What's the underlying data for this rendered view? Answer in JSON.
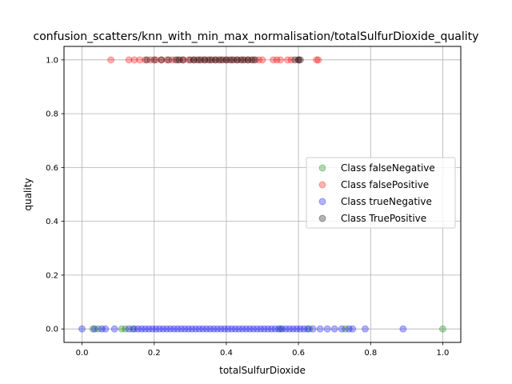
{
  "chart_data": {
    "type": "scatter",
    "title": "confusion_scatters/knn_with_min_max_normalisation/totalSulfurDioxide_quality",
    "xlabel": "totalSulfurDioxide",
    "ylabel": "quality",
    "xlim": [
      -0.05,
      1.05
    ],
    "ylim": [
      -0.05,
      1.05
    ],
    "grid": true,
    "xticks": [
      "0.0",
      "0.2",
      "0.4",
      "0.6",
      "0.8",
      "1.0"
    ],
    "yticks": [
      "0.0",
      "0.2",
      "0.4",
      "0.6",
      "0.8",
      "1.0"
    ],
    "legend_position": "center-right",
    "series": [
      {
        "name": "Class falseNegative",
        "color": "#008000",
        "x": [
          0.03,
          0.045,
          0.11,
          0.12,
          0.14,
          0.55,
          0.63,
          0.73,
          1.0
        ],
        "y": [
          0,
          0,
          0,
          0,
          0,
          0,
          0,
          0,
          0
        ]
      },
      {
        "name": "Class falsePositive",
        "color": "#ff0000",
        "x": [
          0.08,
          0.13,
          0.145,
          0.16,
          0.175,
          0.19,
          0.205,
          0.22,
          0.235,
          0.25,
          0.265,
          0.28,
          0.295,
          0.31,
          0.325,
          0.34,
          0.355,
          0.37,
          0.385,
          0.4,
          0.415,
          0.43,
          0.445,
          0.46,
          0.475,
          0.49,
          0.5,
          0.53,
          0.54,
          0.55,
          0.57,
          0.58,
          0.6,
          0.65,
          0.655
        ],
        "y": [
          1,
          1,
          1,
          1,
          1,
          1,
          1,
          1,
          1,
          1,
          1,
          1,
          1,
          1,
          1,
          1,
          1,
          1,
          1,
          1,
          1,
          1,
          1,
          1,
          1,
          1,
          1,
          1,
          1,
          1,
          1,
          1,
          1,
          1,
          1
        ]
      },
      {
        "name": "Class trueNegative",
        "color": "#0000ff",
        "x": [
          0.0,
          0.035,
          0.055,
          0.065,
          0.09,
          0.13,
          0.145,
          0.155,
          0.165,
          0.175,
          0.185,
          0.195,
          0.205,
          0.215,
          0.225,
          0.235,
          0.245,
          0.255,
          0.265,
          0.275,
          0.285,
          0.295,
          0.305,
          0.315,
          0.325,
          0.335,
          0.345,
          0.355,
          0.365,
          0.375,
          0.385,
          0.395,
          0.405,
          0.415,
          0.425,
          0.435,
          0.445,
          0.455,
          0.465,
          0.475,
          0.485,
          0.495,
          0.505,
          0.515,
          0.525,
          0.535,
          0.545,
          0.555,
          0.565,
          0.575,
          0.585,
          0.595,
          0.605,
          0.615,
          0.625,
          0.64,
          0.66,
          0.68,
          0.7,
          0.72,
          0.74,
          0.75,
          0.785,
          0.89
        ],
        "y": [
          0,
          0,
          0,
          0,
          0,
          0,
          0,
          0,
          0,
          0,
          0,
          0,
          0,
          0,
          0,
          0,
          0,
          0,
          0,
          0,
          0,
          0,
          0,
          0,
          0,
          0,
          0,
          0,
          0,
          0,
          0,
          0,
          0,
          0,
          0,
          0,
          0,
          0,
          0,
          0,
          0,
          0,
          0,
          0,
          0,
          0,
          0,
          0,
          0,
          0,
          0,
          0,
          0,
          0,
          0,
          0,
          0,
          0,
          0,
          0,
          0,
          0,
          0,
          0
        ]
      },
      {
        "name": "Class TruePositive",
        "color": "#000000",
        "x": [
          0.18,
          0.2,
          0.22,
          0.24,
          0.26,
          0.27,
          0.28,
          0.3,
          0.31,
          0.32,
          0.33,
          0.34,
          0.35,
          0.36,
          0.37,
          0.38,
          0.39,
          0.4,
          0.41,
          0.42,
          0.43,
          0.44,
          0.45,
          0.46,
          0.47,
          0.48,
          0.59,
          0.6,
          0.605
        ],
        "y": [
          1,
          1,
          1,
          1,
          1,
          1,
          1,
          1,
          1,
          1,
          1,
          1,
          1,
          1,
          1,
          1,
          1,
          1,
          1,
          1,
          1,
          1,
          1,
          1,
          1,
          1,
          1,
          1,
          1
        ]
      }
    ]
  }
}
